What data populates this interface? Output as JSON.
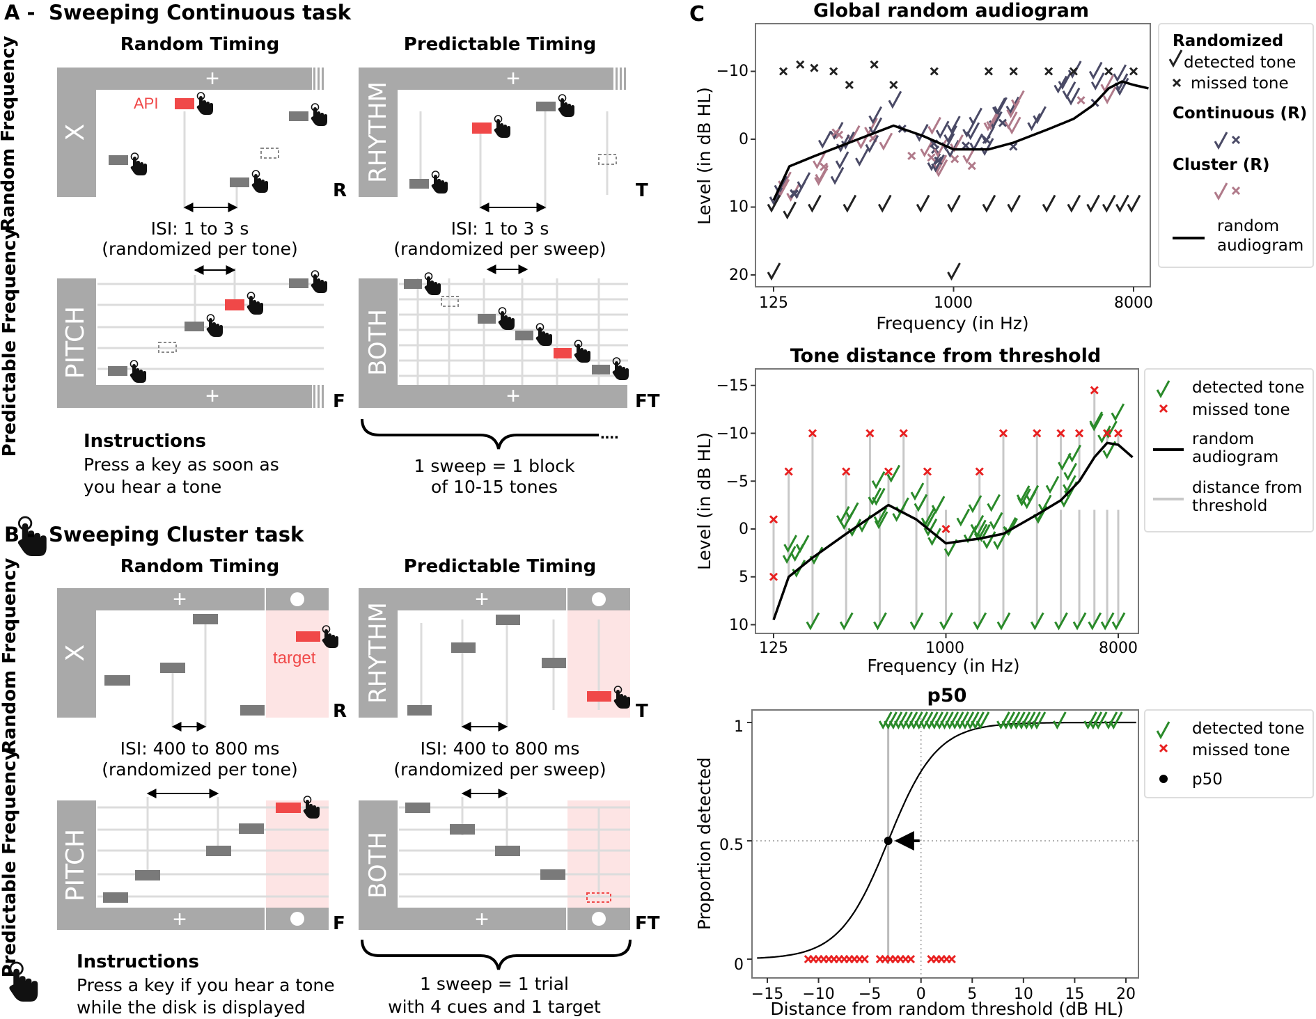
{
  "colors": {
    "panel_gray": "#a9a9a9",
    "tone_gray": "#7a7a7a",
    "line_gray": "#dcdcdc",
    "api_red": "#f04848",
    "target_bg": "#fde4e4",
    "dark": "#222222",
    "green": "#2a8a2a",
    "red": "#e82020",
    "mauve": "#b07a8a",
    "slate": "#4a4a66"
  },
  "icons": [
    "hand-pointer-icon",
    "fixation-cross-icon",
    "disk-icon",
    "dashed-missing-tone-icon",
    "checkmark-icon",
    "cross-icon"
  ],
  "panelA": {
    "letter": "A -",
    "title": "Sweeping Continuous task",
    "col_random": "Random Timing",
    "col_predictable": "Predictable Timing",
    "row_random": "Random Frequency",
    "row_predictable": "Predictable Frequency",
    "cond_x": "X",
    "cond_rhythm": "RHYTHM",
    "cond_pitch": "PITCH",
    "cond_both": "BOTH",
    "tag_r": "R",
    "tag_t": "T",
    "tag_f": "F",
    "tag_ft": "FT",
    "cross": "+",
    "api": "API",
    "isi_random_1": "ISI: 1 to 3 s",
    "isi_random_2": "(randomized per tone)",
    "isi_pred_1": "ISI: 1 to 3 s",
    "isi_pred_2": "(randomized per sweep)",
    "instr_title": "Instructions",
    "instr_1": "Press a key as soon as",
    "instr_2": "you hear a tone",
    "sweep_1": "1 sweep = 1 block",
    "sweep_2": "of 10-15 tones"
  },
  "panelB": {
    "letter": "B -",
    "title": "Sweeping Cluster task",
    "col_random": "Random Timing",
    "col_predictable": "Predictable Timing",
    "row_random": "Random Frequency",
    "row_predictable": "Predictable Frequency",
    "cond_x": "X",
    "cond_rhythm": "RHYTHM",
    "cond_pitch": "PITCH",
    "cond_both": "BOTH",
    "tag_r": "R",
    "tag_t": "T",
    "tag_f": "F",
    "tag_ft": "FT",
    "cross": "+",
    "target": "target",
    "isi_random_1": "ISI: 400 to 800 ms",
    "isi_random_2": "(randomized per tone)",
    "isi_pred_1": "ISI: 400 to 800 ms",
    "isi_pred_2": "(randomized per sweep)",
    "instr_title": "Instructions",
    "instr_1": "Press a key if you hear a tone",
    "instr_2": "while the disk is displayed",
    "sweep_1": "1 sweep = 1 trial",
    "sweep_2": "with 4 cues and 1 target"
  },
  "panelC": {
    "letter": "C",
    "chart1": {
      "title": "Global random audiogram",
      "xlabel": "Frequency (in Hz)",
      "ylabel": "Level (in dB HL)",
      "xticks": [
        "125",
        "1000",
        "8000"
      ],
      "yticks": [
        "−10",
        "0",
        "10",
        "20"
      ],
      "legend": {
        "head1": "Randomized",
        "detected": "detected tone",
        "missed": "missed tone",
        "head2": "Continuous (R)",
        "head3": "Cluster (R)",
        "curve_1": "random",
        "curve_2": "audiogram"
      }
    },
    "chart2": {
      "title": "Tone distance from threshold",
      "xlabel": "Frequency (in Hz)",
      "ylabel": "Level (in dB HL)",
      "xticks": [
        "125",
        "1000",
        "8000"
      ],
      "yticks": [
        "−15",
        "−10",
        "−5",
        "0",
        "5",
        "10"
      ],
      "legend": {
        "detected": "detected tone",
        "missed": "missed tone",
        "curve_1": "random",
        "curve_2": "audiogram",
        "dist_1": "distance from",
        "dist_2": "threshold"
      }
    },
    "chart3": {
      "title": "p50",
      "xlabel": "Distance from random threshold (dB HL)",
      "ylabel": "Proportion detected",
      "xticks": [
        "−15",
        "−10",
        "−5",
        "0",
        "5",
        "10",
        "15",
        "20"
      ],
      "yticks": [
        "1",
        "0.5",
        "0"
      ],
      "legend": {
        "detected": "detected tone",
        "missed": "missed tone",
        "p50": "p50"
      }
    }
  },
  "chart_data": [
    {
      "type": "scatter",
      "title": "Global random audiogram",
      "xlabel": "Frequency (in Hz)",
      "ylabel": "Level (in dB HL)",
      "xscale": "log",
      "xlim": [
        100,
        10500
      ],
      "ylim": [
        23,
        -15
      ],
      "curve": {
        "x": [
          125,
          150,
          200,
          300,
          500,
          700,
          1000,
          1500,
          2000,
          3000,
          4000,
          5000,
          6000,
          7000,
          8000,
          9500
        ],
        "y": [
          9,
          4,
          2.5,
          0.5,
          -2,
          -0.5,
          1.5,
          1.5,
          0.5,
          -1.5,
          -3,
          -5,
          -7.5,
          -8.5,
          -8,
          -7.5
        ]
      },
      "detected_dark": {
        "x": [
          125,
          150,
          200,
          300,
          450,
          700,
          1000,
          1500,
          2000,
          3000,
          4000,
          5000,
          6000,
          7000,
          8000
        ],
        "y": [
          10,
          11,
          10,
          10,
          10,
          10,
          10,
          10,
          10,
          10,
          10,
          10,
          10,
          10,
          10
        ]
      },
      "detected_low": {
        "x": [
          125,
          1000
        ],
        "y": [
          20,
          20
        ]
      },
      "missed_dark": {
        "x": [
          140,
          170,
          200,
          250,
          300,
          400,
          500,
          800,
          1500,
          2000,
          3000,
          4000,
          6000,
          8000
        ],
        "y": [
          -10,
          -11,
          -10.5,
          -10,
          -8,
          -11,
          -8,
          -10,
          -10,
          -10,
          -10,
          -10,
          -10,
          -10
        ]
      }
    },
    {
      "type": "scatter",
      "title": "Tone distance from threshold",
      "xlabel": "Frequency (in Hz)",
      "ylabel": "Level (in dB HL)",
      "xscale": "log",
      "xlim": [
        100,
        10500
      ],
      "ylim": [
        11,
        -16
      ],
      "curve": {
        "x": [
          125,
          150,
          200,
          300,
          500,
          700,
          1000,
          1500,
          2000,
          3000,
          4000,
          5000,
          6000,
          7000,
          8000,
          9500
        ],
        "y": [
          9.5,
          5,
          3,
          0.5,
          -2.5,
          -1,
          1.5,
          1,
          0.5,
          -1.5,
          -3,
          -5,
          -7.5,
          -9,
          -8.8,
          -7.5
        ]
      },
      "missed": {
        "x": [
          125,
          125,
          150,
          200,
          300,
          400,
          500,
          600,
          800,
          1000,
          1500,
          2000,
          3000,
          4000,
          5000,
          6000,
          7000,
          8000
        ],
        "y": [
          -1,
          5,
          -6,
          -10,
          -6,
          -10,
          -6,
          -10,
          -6,
          0,
          -6,
          -10,
          -10,
          -10,
          -10,
          -14.5,
          -10,
          -10
        ]
      },
      "detected_base": {
        "x": [
          200,
          300,
          450,
          700,
          1000,
          1500,
          2000,
          3000,
          4000,
          5000,
          6000,
          7000,
          8000
        ],
        "y": [
          10,
          10,
          10,
          10,
          10,
          10,
          10,
          10,
          10,
          10,
          10,
          10,
          10
        ]
      }
    },
    {
      "type": "line",
      "title": "p50",
      "xlabel": "Distance from random threshold (dB HL)",
      "ylabel": "Proportion detected",
      "xlim": [
        -16,
        21
      ],
      "ylim": [
        -0.05,
        1.05
      ],
      "sigmoid": {
        "center": -3.2,
        "slope": 0.42
      },
      "p50": {
        "x": -3.2,
        "y": 0.5
      },
      "detected_x": [
        -3.5,
        -3,
        -2.5,
        -2,
        -1.5,
        -1,
        -0.5,
        0,
        0.5,
        1,
        1.5,
        2,
        2.5,
        3,
        3.5,
        4,
        4.5,
        5,
        5.5,
        6,
        8,
        8.5,
        9,
        9.5,
        10,
        10.5,
        11,
        11.5,
        13.5,
        16.5,
        17,
        17.5,
        18.5,
        19
      ],
      "missed_x": [
        -11,
        -10.5,
        -10,
        -9.5,
        -9,
        -8.5,
        -8,
        -7.5,
        -7,
        -6.5,
        -6,
        -5.5,
        -4,
        -3.5,
        -3,
        -2.5,
        -2,
        -1.5,
        -1,
        1,
        1.5,
        2,
        2.5,
        3
      ]
    }
  ]
}
